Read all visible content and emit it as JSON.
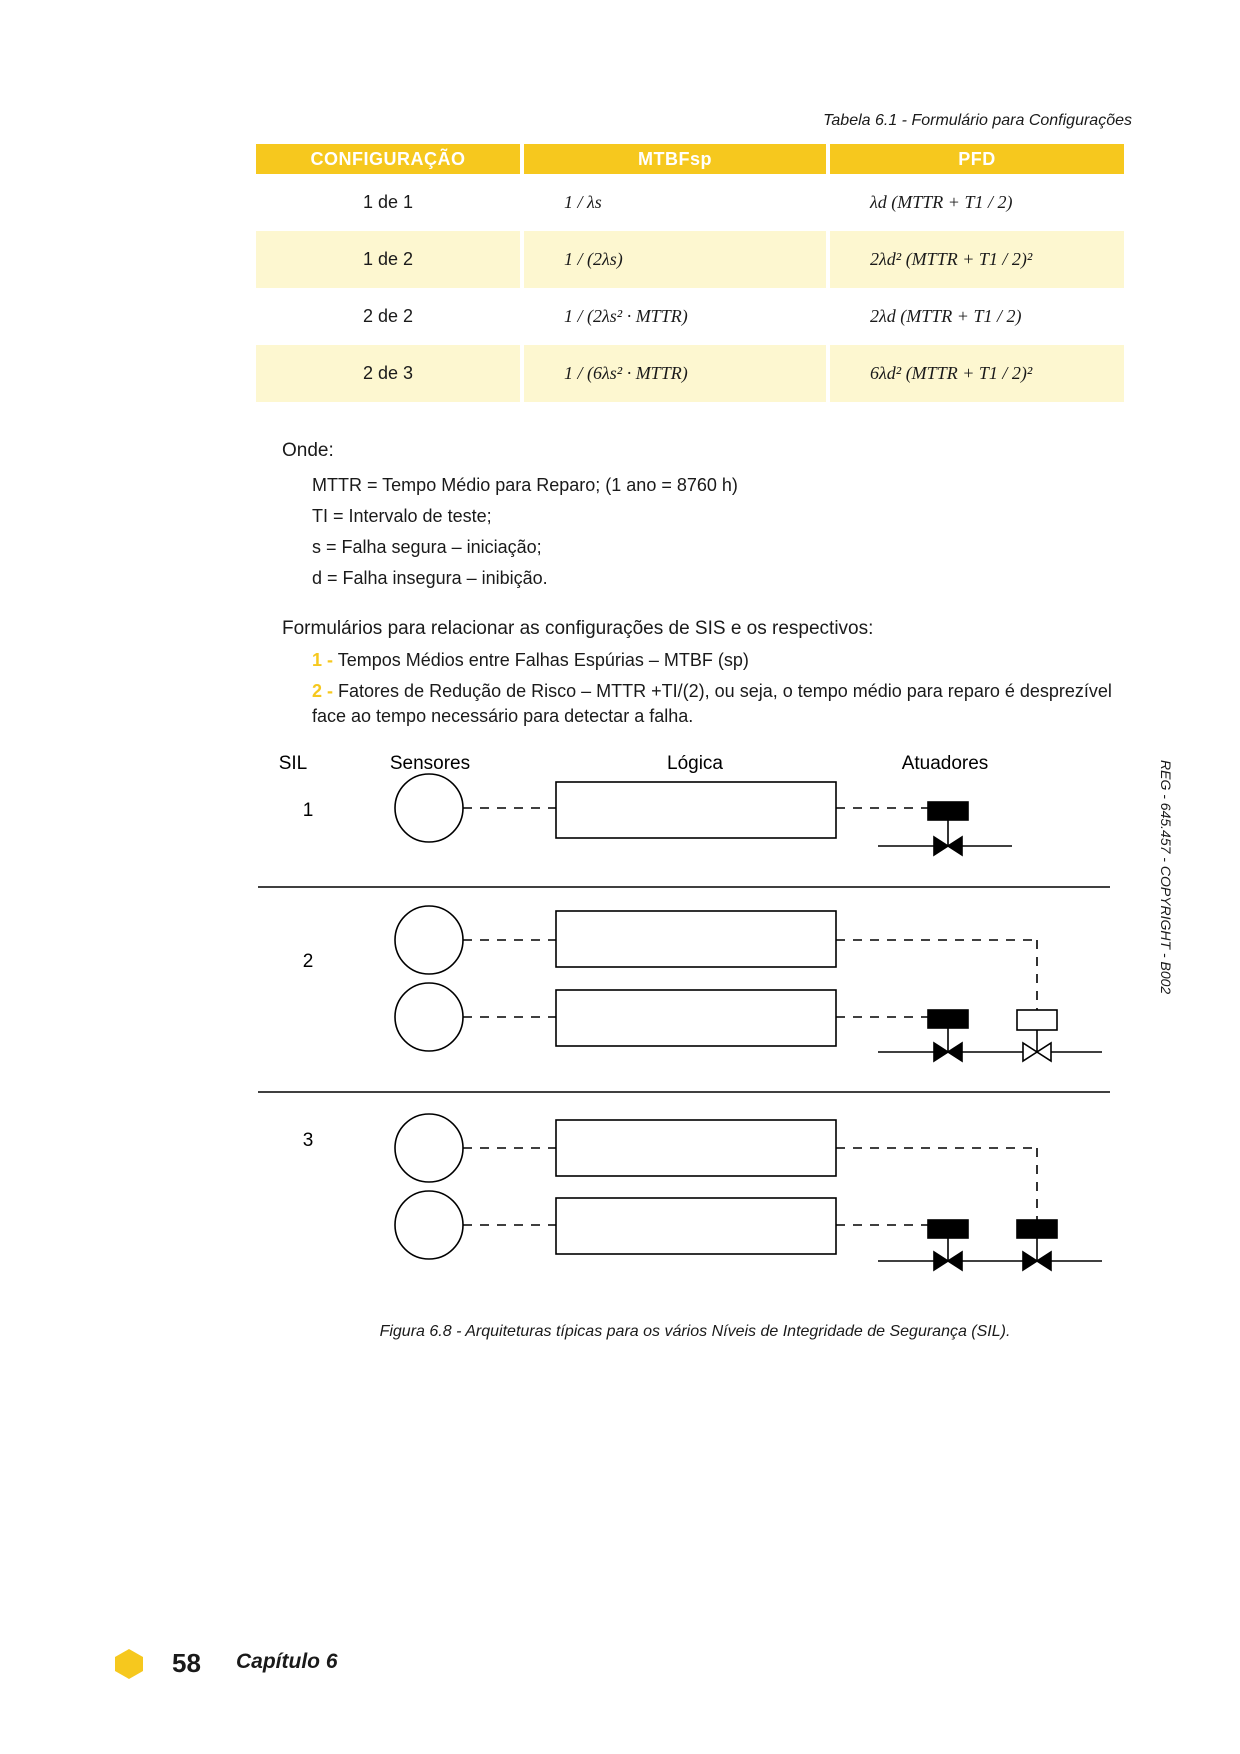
{
  "table": {
    "caption": "Tabela 6.1 - Formulário para Configurações",
    "headers": [
      "CONFIGURAÇÃO",
      "MTBFsp",
      "PFD"
    ],
    "rows": [
      {
        "config": "1 de 1",
        "mtbf": "1 / λs",
        "pfd": "λd (MTTR + T1 / 2)"
      },
      {
        "config": "1 de 2",
        "mtbf": "1 / (2λs)",
        "pfd": "2λd² (MTTR + T1 / 2)²"
      },
      {
        "config": "2 de 2",
        "mtbf": "1 / (2λs² · MTTR)",
        "pfd": "2λd (MTTR + T1 / 2)"
      },
      {
        "config": "2 de 3",
        "mtbf": "1 / (6λs² · MTTR)",
        "pfd": "6λd² (MTTR + T1 / 2)²"
      }
    ]
  },
  "onde": {
    "title": "Onde:",
    "items": [
      "MTTR = Tempo Médio para Reparo; (1 ano = 8760 h)",
      "TI = Intervalo de teste;",
      "s = Falha segura – iniciação;",
      "d = Falha insegura – inibição."
    ]
  },
  "formularios": {
    "intro": "Formulários para relacionar as configurações de SIS e os respectivos:",
    "items": [
      {
        "num": "1 -",
        "text": "Tempos Médios entre Falhas Espúrias – MTBF (sp)"
      },
      {
        "num": "2 -",
        "text": "Fatores de Redução de Risco – MTTR +TI/(2), ou seja, o tempo médio para reparo é desprezível face ao tempo necessário para detectar a falha."
      }
    ]
  },
  "diagram": {
    "headers": {
      "sil": "SIL",
      "sensores": "Sensores",
      "logica": "Lógica",
      "atuadores": "Atuadores"
    },
    "levels": [
      "1",
      "2",
      "3"
    ]
  },
  "figure_caption": "Figura 6.8 - Arquiteturas típicas para os vários Níveis de Integridade de Segurança (SIL).",
  "side_text": "REG - 645.457 - COPYRIGHT - B002",
  "footer": {
    "page_number": "58",
    "chapter": "Capítulo 6"
  },
  "colors": {
    "accent": "#f6c81e",
    "row_shade": "#fdf7d0"
  }
}
